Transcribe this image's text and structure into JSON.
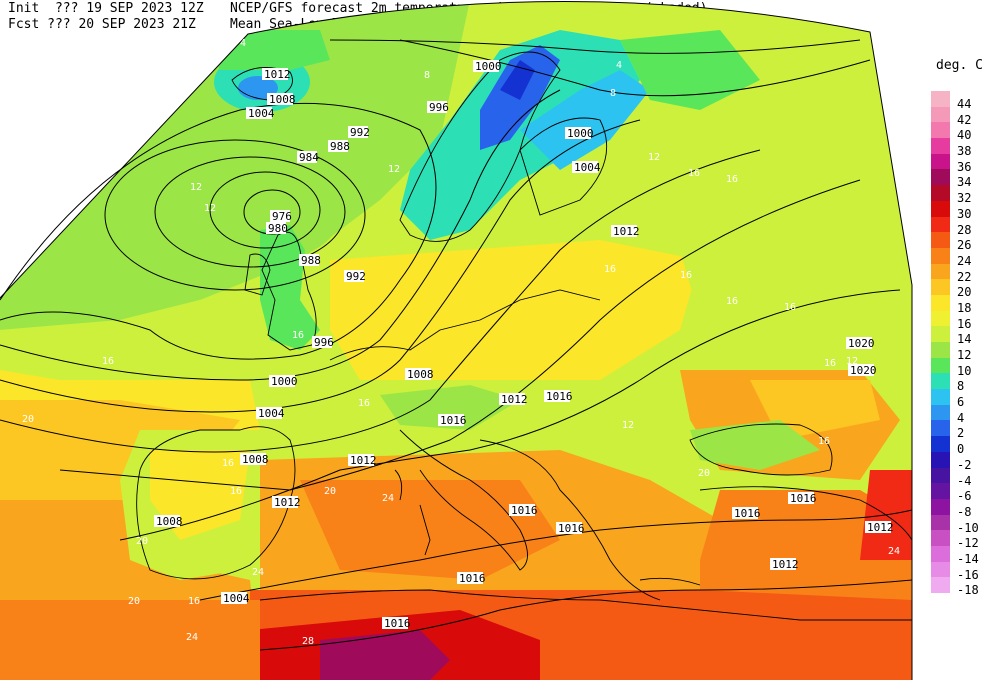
{
  "header": {
    "line1_left": "Init  ??? 19 SEP 2023 12Z",
    "line1_right": "NCEP/GFS forecast 2m temperatures in degrees Celcius (shaded)",
    "line2_left": "Fcst ??? 20 SEP 2023 21Z",
    "line2_right": "Mean Sea-Level Pressure (hPa) (black)."
  },
  "legend": {
    "title": "deg. C",
    "entries": [
      {
        "label": "44",
        "color": "#f6b3c5"
      },
      {
        "label": "42",
        "color": "#f49ab8"
      },
      {
        "label": "40",
        "color": "#f278ad"
      },
      {
        "label": "38",
        "color": "#e63ca0"
      },
      {
        "label": "36",
        "color": "#c8138a"
      },
      {
        "label": "34",
        "color": "#a00a5a"
      },
      {
        "label": "32",
        "color": "#b40a28"
      },
      {
        "label": "30",
        "color": "#d80a0a"
      },
      {
        "label": "28",
        "color": "#f02a14"
      },
      {
        "label": "26",
        "color": "#f55a14"
      },
      {
        "label": "24",
        "color": "#f88218"
      },
      {
        "label": "22",
        "color": "#faa51e"
      },
      {
        "label": "20",
        "color": "#fcc623"
      },
      {
        "label": "18",
        "color": "#fbe62a"
      },
      {
        "label": "16",
        "color": "#f0f032"
      },
      {
        "label": "14",
        "color": "#cdf03c"
      },
      {
        "label": "12",
        "color": "#9be646"
      },
      {
        "label": "10",
        "color": "#5ae65a"
      },
      {
        "label": "8",
        "color": "#2ddfb4"
      },
      {
        "label": "6",
        "color": "#2dc3f0"
      },
      {
        "label": "4",
        "color": "#2d96f0"
      },
      {
        "label": "2",
        "color": "#2864eb"
      },
      {
        "label": "0",
        "color": "#1432d2"
      },
      {
        "label": "-2",
        "color": "#2814b4"
      },
      {
        "label": "-4",
        "color": "#4614a0"
      },
      {
        "label": "-6",
        "color": "#6414a0"
      },
      {
        "label": "-8",
        "color": "#8c14a0"
      },
      {
        "label": "-10",
        "color": "#a832a8"
      },
      {
        "label": "-12",
        "color": "#c850c3"
      },
      {
        "label": "-14",
        "color": "#dc6edc"
      },
      {
        "label": "-16",
        "color": "#e68ce6"
      },
      {
        "label": "-18",
        "color": "#f0aaf0"
      }
    ]
  },
  "isobar_labels": [
    "1012",
    "1008",
    "1004",
    "1000",
    "996",
    "992",
    "988",
    "984",
    "976",
    "980",
    "988",
    "992",
    "996",
    "1000",
    "1004",
    "1008",
    "1012",
    "1016",
    "1016",
    "1012",
    "1016",
    "1016",
    "1016",
    "1016",
    "1016",
    "1012",
    "1012",
    "1020",
    "1020",
    "1008",
    "1012",
    "1000",
    "1004",
    "1012",
    "1008",
    "1004",
    "1016"
  ],
  "temp_labels": [
    "4",
    "8",
    "12",
    "12",
    "12",
    "16",
    "20",
    "20",
    "24",
    "24",
    "28",
    "16",
    "16",
    "16",
    "16",
    "12",
    "16",
    "16",
    "16",
    "20",
    "24",
    "16",
    "16",
    "16",
    "4",
    "8",
    "12",
    "16",
    "12",
    "16",
    "20",
    "24",
    "20",
    "16"
  ]
}
